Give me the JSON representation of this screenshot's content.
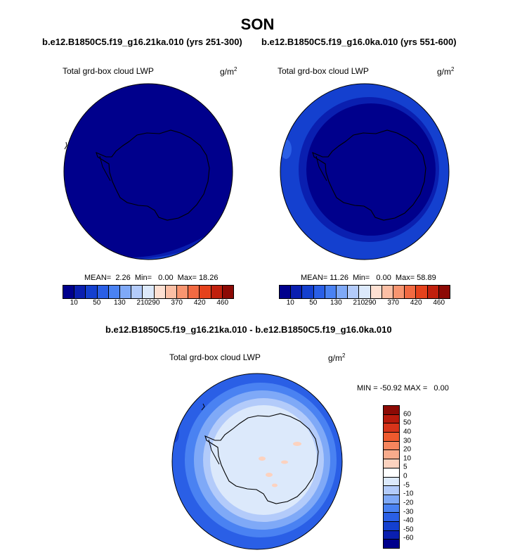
{
  "title": "SON",
  "panels": {
    "left": {
      "case": "b.e12.B1850C5.f19_g16.21ka.010 (yrs 251-300)",
      "variable": "Total grd-box cloud LWP",
      "units_base": "g/m",
      "units_exp": "2",
      "stats": "MEAN=  2.26  Min=   0.00  Max= 18.26"
    },
    "right": {
      "case": "b.e12.B1850C5.f19_g16.0ka.010 (yrs 551-600)",
      "variable": "Total grd-box cloud LWP",
      "units_base": "g/m",
      "units_exp": "2",
      "stats": "MEAN= 11.26  Min=   0.00  Max= 58.89"
    },
    "diff": {
      "title": "b.e12.B1850C5.f19_g16.21ka.010 - b.e12.B1850C5.f19_g16.0ka.010",
      "variable": "Total grd-box cloud LWP",
      "units_base": "g/m",
      "units_exp": "2",
      "stats": "MIN = -50.92 MAX =   0.00"
    }
  },
  "colorbar_top": {
    "colors": [
      "#00008c",
      "#0a1fb0",
      "#1440cf",
      "#2a5fe6",
      "#4a82f2",
      "#7fa9f7",
      "#b3cbfa",
      "#dce9fb",
      "#fde0d2",
      "#fbbfa5",
      "#f89570",
      "#f26a42",
      "#e5421c",
      "#c0200d",
      "#8c0a05"
    ],
    "tick_labels": [
      "10",
      "50",
      "130",
      "210",
      "290",
      "370",
      "420",
      "460"
    ]
  },
  "colorbar_diff": {
    "colors": [
      "#8c0a05",
      "#b81a0c",
      "#d8341a",
      "#ef5a2e",
      "#f6855d",
      "#f8ab8c",
      "#fcd2bf",
      "#ffffff",
      "#dce9fb",
      "#b3cbfa",
      "#7fa9f7",
      "#4a82f2",
      "#2a5fe6",
      "#1440cf",
      "#0a1fb0",
      "#00008c"
    ],
    "tick_labels": [
      "60",
      "50",
      "40",
      "30",
      "20",
      "10",
      "5",
      "0",
      "-5",
      "-10",
      "-20",
      "-30",
      "-40",
      "-50",
      "-60"
    ]
  },
  "map_colors": {
    "dark": "#00008c",
    "blue1": "#0a1fb0",
    "blue2": "#1440cf",
    "blue3": "#2a5fe6",
    "light1": "#7fa9f7",
    "light2": "#b3cbfa",
    "pale": "#dce9fb",
    "pink": "#fcd2bf"
  }
}
